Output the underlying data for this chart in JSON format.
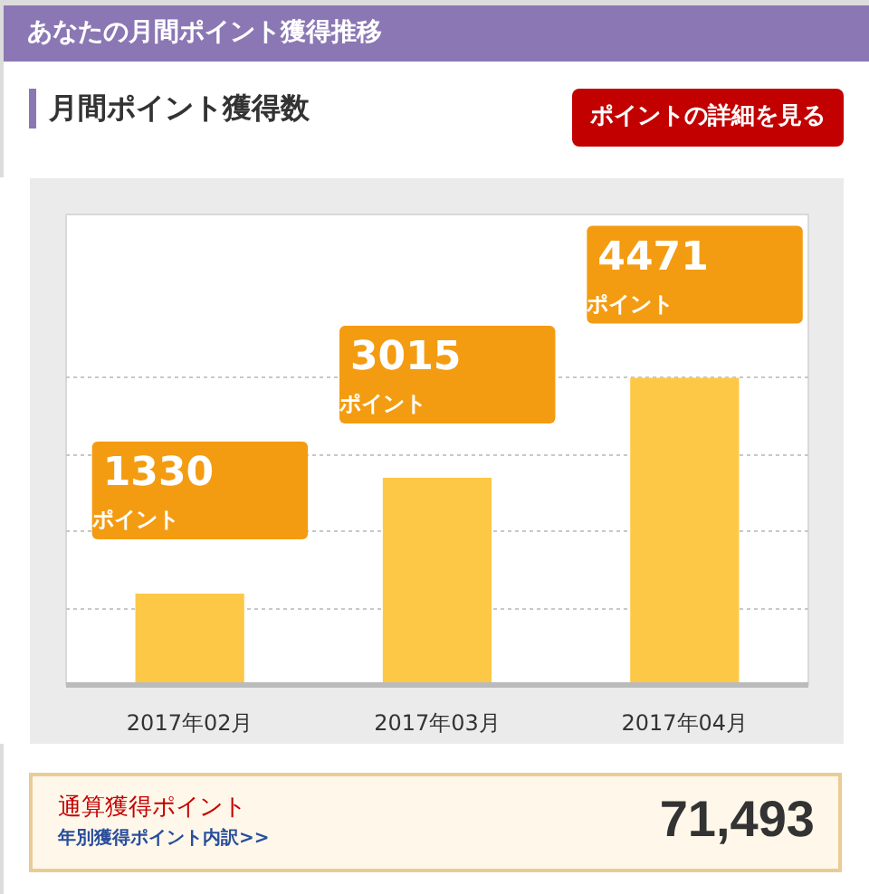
{
  "chart_data": {
    "type": "bar",
    "title": "あなたの月間ポイント獲得推移",
    "subtitle": "月間ポイント獲得数",
    "categories": [
      "2017年02月",
      "2017年03月",
      "2017年04月"
    ],
    "values": [
      1330,
      3015,
      4471
    ],
    "value_labels": [
      "1330\nポイント",
      "3015\nポイント",
      "4471\nポイント"
    ],
    "color": "#fec847",
    "ylim": [
      0,
      6850
    ],
    "yticks": [
      {
        "value": 1118,
        "label": null
      },
      {
        "value": 2236,
        "label": null
      },
      {
        "value": 3353,
        "label": null
      },
      {
        "value": 4471,
        "label": null
      }
    ],
    "grid": "y",
    "tick_labels": "x",
    "annotations": [
      "ポイントの詳細を見る",
      "通算獲得ポイント",
      "年別獲得ポイント内訳>>",
      "71,493"
    ]
  }
}
